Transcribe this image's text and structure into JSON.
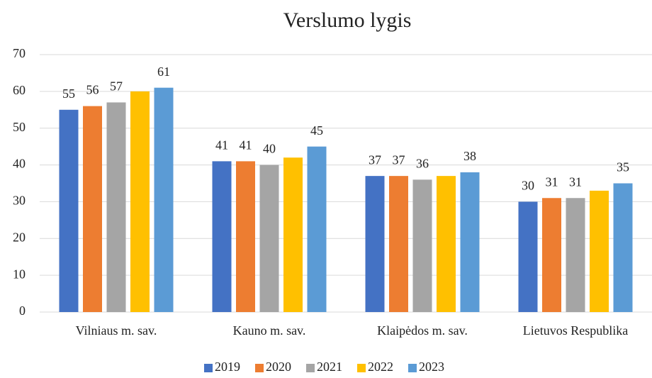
{
  "chart_data": {
    "type": "bar",
    "title": "Verslumo lygis",
    "categories": [
      "Vilniaus m. sav.",
      "Kauno m. sav.",
      "Klaipėdos m. sav.",
      "Lietuvos Respublika"
    ],
    "series": [
      {
        "name": "2019",
        "color": "#4472c4",
        "values": [
          55,
          41,
          37,
          30
        ],
        "data_labels": true
      },
      {
        "name": "2020",
        "color": "#ed7d31",
        "values": [
          56,
          41,
          37,
          31
        ],
        "data_labels": true
      },
      {
        "name": "2021",
        "color": "#a5a5a5",
        "values": [
          57,
          40,
          36,
          31
        ],
        "data_labels": true
      },
      {
        "name": "2022",
        "color": "#ffc000",
        "values": [
          60,
          42,
          37,
          33
        ],
        "data_labels": false
      },
      {
        "name": "2023",
        "color": "#5b9bd5",
        "values": [
          61,
          45,
          38,
          35
        ],
        "data_labels": true
      }
    ],
    "ylim": [
      0,
      70
    ],
    "yticks": [
      0,
      10,
      20,
      30,
      40,
      50,
      60,
      70
    ],
    "grid": true,
    "legend": "bottom"
  }
}
